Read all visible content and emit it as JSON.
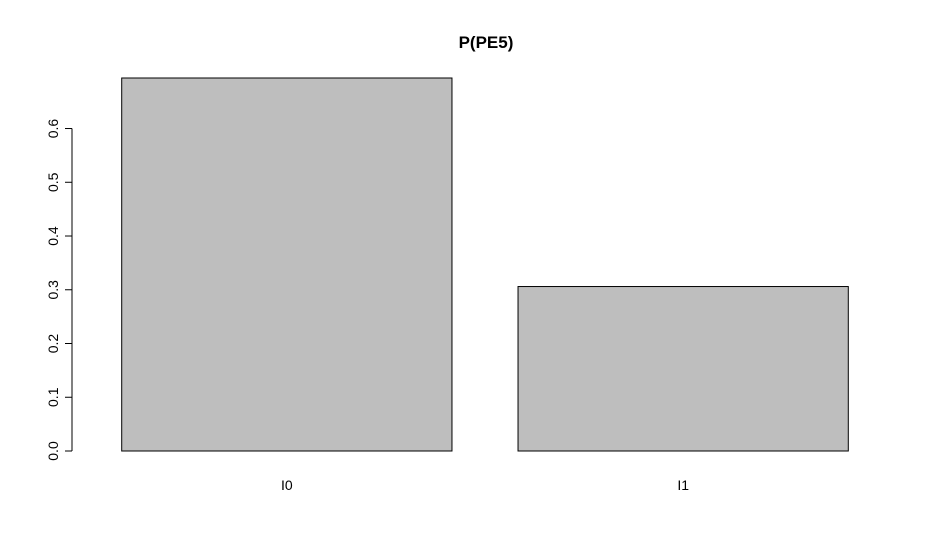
{
  "chart_data": {
    "type": "bar",
    "title": "P(PE5)",
    "xlabel": "",
    "ylabel": "",
    "categories": [
      "I0",
      "I1"
    ],
    "values": [
      0.694,
      0.306
    ],
    "ylim": [
      0,
      0.694
    ],
    "yticks": [
      "0.0",
      "0.1",
      "0.2",
      "0.3",
      "0.4",
      "0.5",
      "0.6"
    ],
    "grid": false,
    "legend": "none",
    "colors": {
      "bar_fill": "#bebebe",
      "bar_stroke": "#000000",
      "axis": "#000000",
      "background": "#ffffff"
    }
  }
}
